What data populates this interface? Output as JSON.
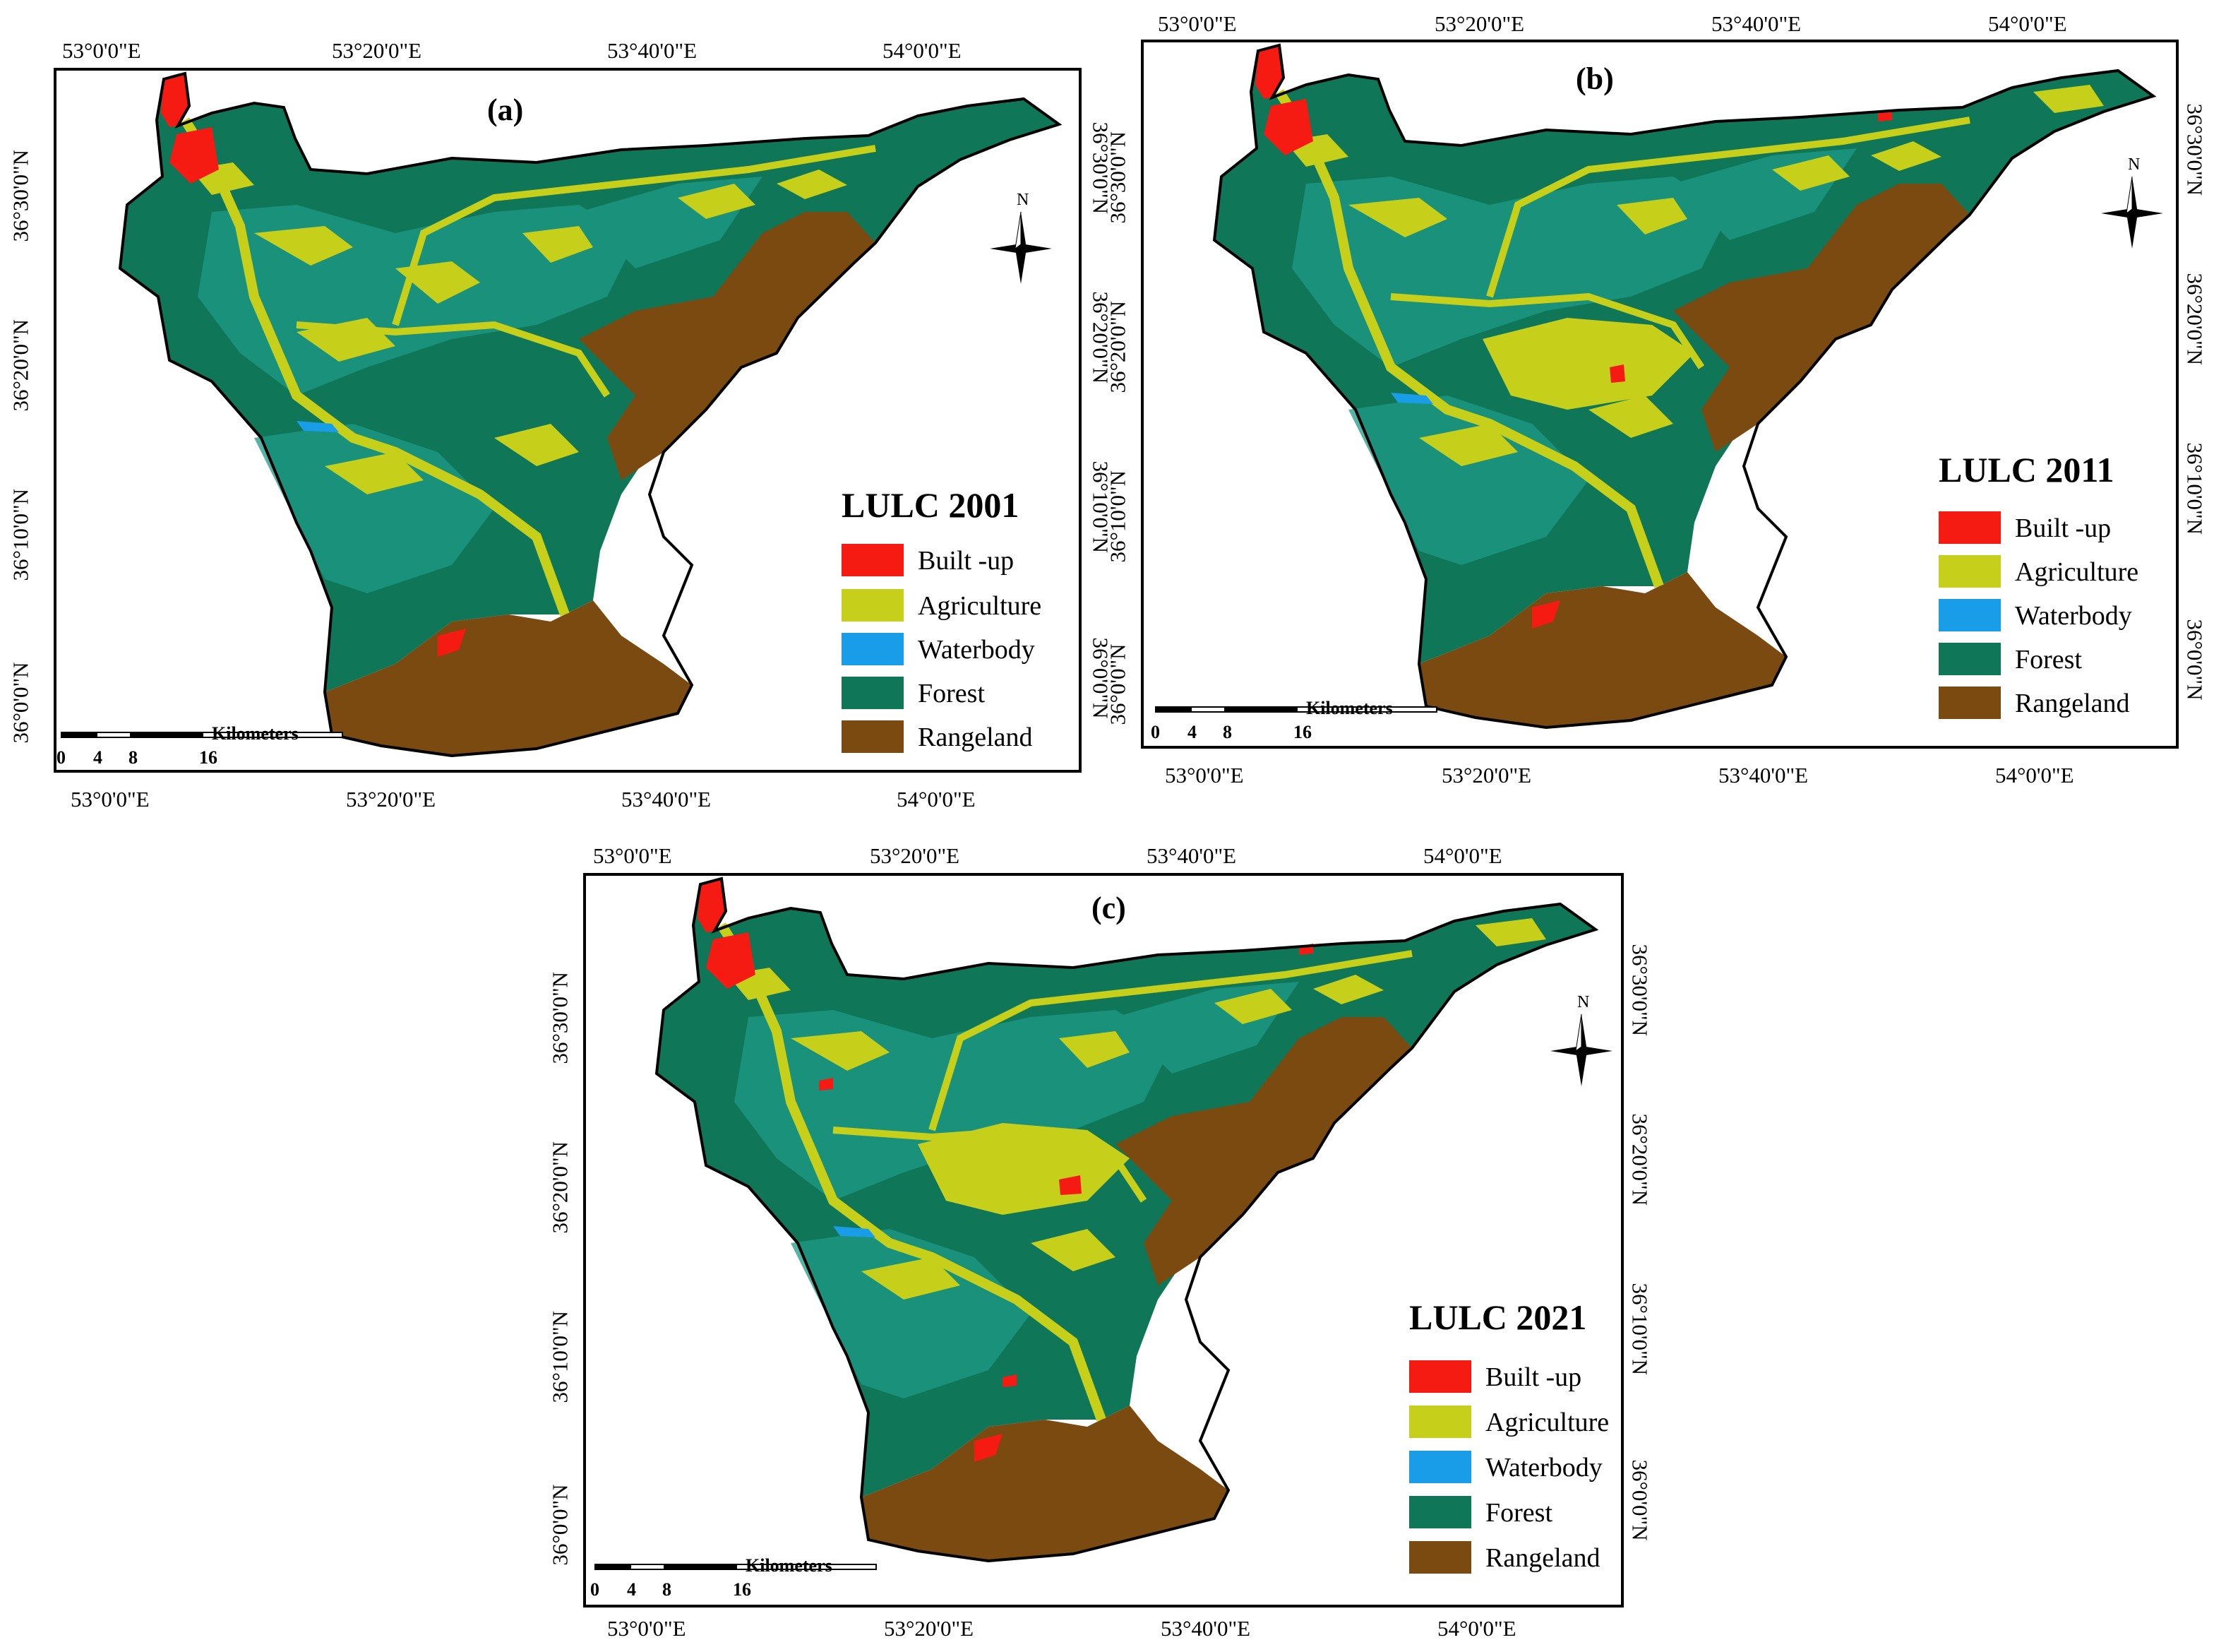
{
  "colors": {
    "built_up": "#f51a12",
    "agriculture": "#c6cf1a",
    "waterbody": "#1a9de8",
    "forest": "#0f7658",
    "forest_shade": "#1f9b86",
    "rangeland": "#7a4a10"
  },
  "panels": [
    {
      "label": "(a)",
      "legend_title": "LULC 2001",
      "legend": [
        "Built -up",
        "Agriculture",
        "Waterbody",
        "Forest",
        "Rangeland"
      ],
      "top_ticks": [
        "53°0'0\"E",
        "53°20'0\"E",
        "53°40'0\"E",
        "54°0'0\"E"
      ],
      "bottom_ticks": [
        "53°0'0\"E",
        "53°20'0\"E",
        "53°40'0\"E",
        "54°0'0\"E"
      ],
      "left_ticks": [
        "36°30'0\"N",
        "36°20'0\"N",
        "36°10'0\"N",
        "36°0'0\"N"
      ],
      "right_ticks": [
        "36°30'0\"N",
        "36°20'0\"N",
        "36°10'0\"N",
        "36°0'0\"N"
      ],
      "scale_numbers": [
        "0",
        "4",
        "8",
        "16"
      ],
      "scale_unit": "Kilometers",
      "north_label": "N"
    },
    {
      "label": "(b)",
      "legend_title": "LULC 2011",
      "legend": [
        "Built -up",
        "Agriculture",
        "Waterbody",
        "Forest",
        "Rangeland"
      ],
      "top_ticks": [
        "53°0'0\"E",
        "53°20'0\"E",
        "53°40'0\"E",
        "54°0'0\"E"
      ],
      "bottom_ticks": [
        "53°0'0\"E",
        "53°20'0\"E",
        "53°40'0\"E",
        "54°0'0\"E"
      ],
      "left_ticks": [
        "36°30'0\"N",
        "36°20'0\"N",
        "36°10'0\"N",
        "36°0'0\"N"
      ],
      "right_ticks": [
        "36°30'0\"N",
        "36°20'0\"N",
        "36°10'0\"N",
        "36°0'0\"N"
      ],
      "scale_numbers": [
        "0",
        "4",
        "8",
        "16"
      ],
      "scale_unit": "Kilometers",
      "north_label": "N"
    },
    {
      "label": "(c)",
      "legend_title": "LULC 2021",
      "legend": [
        "Built -up",
        "Agriculture",
        "Waterbody",
        "Forest",
        "Rangeland"
      ],
      "top_ticks": [
        "53°0'0\"E",
        "53°20'0\"E",
        "53°40'0\"E",
        "54°0'0\"E"
      ],
      "bottom_ticks": [
        "53°0'0\"E",
        "53°20'0\"E",
        "53°40'0\"E",
        "54°0'0\"E"
      ],
      "left_ticks": [
        "36°30'0\"N",
        "36°20'0\"N",
        "36°10'0\"N",
        "36°0'0\"N"
      ],
      "right_ticks": [
        "36°30'0\"N",
        "36°20'0\"N",
        "36°10'0\"N",
        "36°0'0\"N"
      ],
      "scale_numbers": [
        "0",
        "4",
        "8",
        "16"
      ],
      "scale_unit": "Kilometers",
      "north_label": "N"
    }
  ]
}
